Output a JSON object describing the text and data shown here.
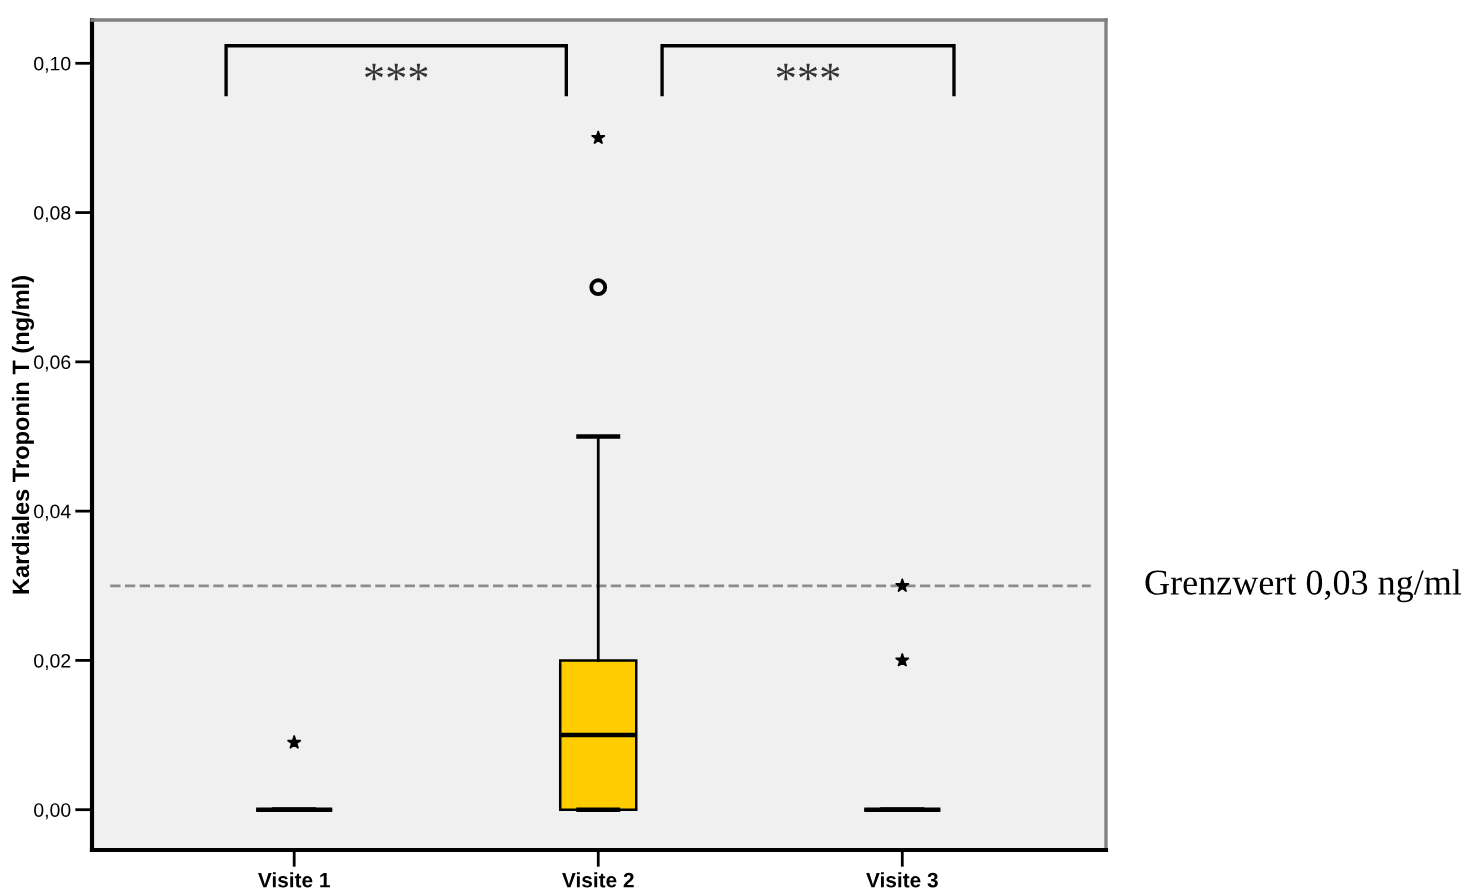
{
  "chart_data": {
    "type": "box",
    "ylabel": "Kardiales Troponin T (ng/ml)",
    "categories": [
      "Visite 1",
      "Visite 2",
      "Visite 3"
    ],
    "ylim": [
      -0.0054,
      0.1058
    ],
    "yticks": [
      {
        "value": 0.0,
        "label": "0,00"
      },
      {
        "value": 0.02,
        "label": "0,02"
      },
      {
        "value": 0.04,
        "label": "0,04"
      },
      {
        "value": 0.06,
        "label": "0,06"
      },
      {
        "value": 0.08,
        "label": "0,08"
      },
      {
        "value": 0.1,
        "label": "0,10"
      }
    ],
    "series": [
      {
        "colors": [
          "#000000",
          "#ffcc00",
          "#000000"
        ],
        "marker": "circle",
        "boxes": [
          {
            "low": 0,
            "q1": 0,
            "median": 0,
            "q3": 0,
            "high": 0
          },
          {
            "low": 0,
            "q1": 0,
            "median": 0.01,
            "q3": 0.02,
            "high": 0.05,
            "outliers": [
              0.07
            ]
          },
          {
            "low": 0,
            "q1": 0,
            "median": 0,
            "q3": 0,
            "high": 0
          }
        ]
      },
      {
        "type": "scatter",
        "color": "#000000",
        "marker": "star",
        "x": [
          "Visite 1",
          "Visite 2",
          "Visite 3",
          "Visite 3"
        ],
        "values": [
          0.009,
          0.09,
          0.02,
          0.03
        ]
      }
    ],
    "ref_lines": [
      {
        "axis": "y",
        "value": 0.03,
        "label": "Grenzwert 0,03 ng/ml",
        "color": "#8c8c8c",
        "line_style": "dashed"
      }
    ],
    "annotations": [
      "***",
      "***"
    ]
  }
}
